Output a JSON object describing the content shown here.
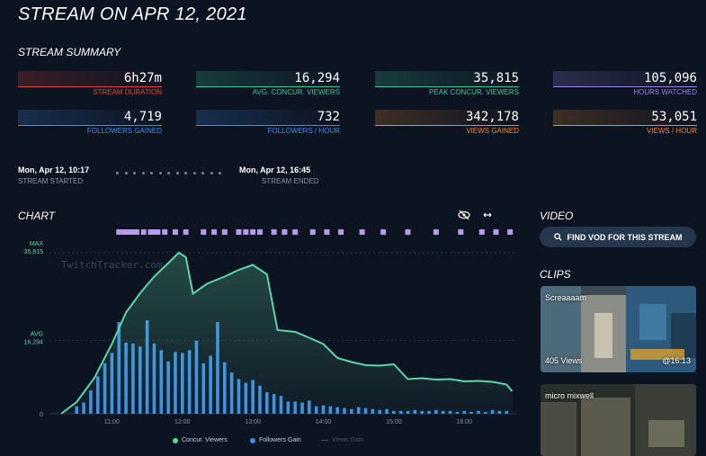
{
  "page": {
    "title": "STREAM ON APR 12, 2021"
  },
  "summary": {
    "heading": "STREAM SUMMARY",
    "stats": [
      {
        "value": "6h27m",
        "label": "STREAM DURATION",
        "color": "#e0453f"
      },
      {
        "value": "16,294",
        "label": "AVG. CONCUR. VIEWERS",
        "color": "#3fc89a"
      },
      {
        "value": "35,815",
        "label": "PEAK CONCUR. VIEWERS",
        "color": "#3fc89a"
      },
      {
        "value": "105,096",
        "label": "HOURS WATCHED",
        "color": "#9a86e6"
      },
      {
        "value": "4,719",
        "label": "FOLLOWERS GAINED",
        "color": "#3d8ee6"
      },
      {
        "value": "732",
        "label": "FOLLOWERS / HOUR",
        "color": "#3d8ee6"
      },
      {
        "value": "342,178",
        "label": "VIEWS GAINED",
        "color": "#f08a2c"
      },
      {
        "value": "53,051",
        "label": "VIEWS / HOUR",
        "color": "#f08a2c"
      }
    ]
  },
  "timeline": {
    "start_date": "Mon, Apr 12, 10:17",
    "start_label": "STREAM STARTED",
    "end_date": "Mon, Apr 12, 16:45",
    "end_label": "STREAM ENDED"
  },
  "chart_section": {
    "heading": "CHART",
    "icons": [
      "eye-slash-icon",
      "expand-arrows-icon"
    ]
  },
  "video": {
    "heading": "VIDEO",
    "button_label": "FIND VOD FOR THIS STREAM"
  },
  "clips": {
    "heading": "CLIPS",
    "items": [
      {
        "title": "Screaaaam",
        "views": "405 Views",
        "time": "@16:13"
      },
      {
        "title": "micro mixwell",
        "views": "",
        "time": ""
      }
    ]
  },
  "chart_data": {
    "type": "line",
    "watermark": "TwitchTracker.com",
    "x_ticks": [
      "11:00",
      "12:00",
      "13:00",
      "14:00",
      "15:00",
      "16:00"
    ],
    "y_markers": [
      {
        "label": "MAX",
        "value": "35,815",
        "raw": 35815
      },
      {
        "label": "AVG",
        "value": "16,294",
        "raw": 16294
      },
      {
        "label": "",
        "value": "0",
        "raw": 0
      }
    ],
    "ylim": [
      0,
      40000
    ],
    "xlim_hours": [
      10.28,
      16.75
    ],
    "series": [
      {
        "name": "Concur. Viewers",
        "color": "#5fd4a7",
        "x": [
          10.28,
          10.5,
          10.75,
          11.0,
          11.2,
          11.4,
          11.6,
          11.8,
          11.95,
          12.05,
          12.15,
          12.35,
          12.6,
          12.8,
          13.0,
          13.2,
          13.35,
          13.6,
          13.8,
          14.0,
          14.2,
          14.4,
          14.6,
          14.8,
          15.0,
          15.2,
          15.4,
          15.6,
          15.8,
          16.0,
          16.2,
          16.4,
          16.6,
          16.68
        ],
        "values": [
          0,
          2600,
          7900,
          15500,
          22500,
          26800,
          30500,
          33500,
          35815,
          34800,
          26700,
          28900,
          30500,
          32000,
          33100,
          31000,
          18600,
          18200,
          16900,
          15500,
          12400,
          11500,
          10800,
          10700,
          11000,
          7700,
          7900,
          7600,
          7700,
          7200,
          7300,
          7100,
          6500,
          5000
        ]
      },
      {
        "name": "Followers Gain",
        "color": "#3d8ee6",
        "type": "bar",
        "x": [
          10.5,
          10.6,
          10.7,
          10.8,
          10.9,
          11.0,
          11.1,
          11.2,
          11.3,
          11.4,
          11.5,
          11.6,
          11.7,
          11.8,
          11.9,
          12.0,
          12.1,
          12.2,
          12.3,
          12.4,
          12.5,
          12.6,
          12.7,
          12.8,
          12.9,
          13.0,
          13.1,
          13.2,
          13.3,
          13.4,
          13.5,
          13.6,
          13.7,
          13.8,
          13.9,
          14.0,
          14.1,
          14.2,
          14.3,
          14.4,
          14.5,
          14.6,
          14.7,
          14.8,
          14.9,
          15.0,
          15.1,
          15.2,
          15.3,
          15.4,
          15.5,
          15.6,
          15.7,
          15.8,
          15.9,
          16.0,
          16.1,
          16.2,
          16.3,
          16.4,
          16.5,
          16.6
        ],
        "values": [
          8,
          12,
          25,
          40,
          54,
          65,
          98,
          76,
          75,
          72,
          100,
          75,
          68,
          56,
          66,
          65,
          68,
          78,
          54,
          62,
          98,
          55,
          44,
          37,
          33,
          36,
          30,
          23,
          21,
          19,
          13,
          13,
          12,
          14,
          8,
          9,
          8,
          7,
          6,
          5,
          7,
          6,
          5,
          4,
          5,
          3,
          3,
          3,
          4,
          3,
          3,
          4,
          3,
          3,
          2,
          3,
          2,
          3,
          2,
          4,
          3,
          3
        ]
      }
    ],
    "legend": [
      "Concur. Viewers",
      "Followers Gain",
      "Views Gain"
    ],
    "event_markers_hours": [
      11.1,
      11.15,
      11.2,
      11.25,
      11.3,
      11.35,
      11.45,
      11.55,
      11.6,
      11.65,
      11.75,
      11.9,
      12.05,
      12.3,
      12.45,
      12.6,
      12.8,
      12.9,
      13.0,
      13.1,
      13.3,
      13.45,
      13.6,
      13.85,
      14.05,
      14.25,
      14.55,
      14.85,
      15.2,
      15.6,
      15.95,
      16.25,
      16.45,
      16.65
    ]
  }
}
